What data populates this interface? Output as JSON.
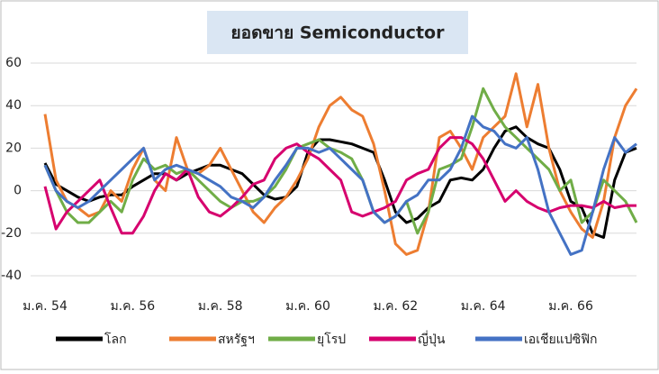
{
  "chart_data": {
    "type": "line",
    "title": "ยอดขาย Semiconductor",
    "categories": [
      "ม.ค. 54",
      null,
      null,
      null,
      null,
      null,
      null,
      null,
      "ม.ค. 56",
      null,
      null,
      null,
      null,
      null,
      null,
      null,
      "ม.ค. 58",
      null,
      null,
      null,
      null,
      null,
      null,
      null,
      "ม.ค. 60",
      null,
      null,
      null,
      null,
      null,
      null,
      null,
      "ม.ค. 62",
      null,
      null,
      null,
      null,
      null,
      null,
      null,
      "ม.ค. 64",
      null,
      null,
      null,
      null,
      null,
      null,
      null,
      "ม.ค. 66",
      null,
      null,
      null,
      null,
      null,
      null
    ],
    "series": [
      {
        "name": "โลก",
        "color": "#000000",
        "values": [
          13,
          3,
          0,
          -3,
          -5,
          -3,
          -2,
          -2,
          2,
          5,
          8,
          8,
          5,
          8,
          10,
          12,
          12,
          10,
          8,
          3,
          -2,
          -4,
          -3,
          2,
          18,
          24,
          24,
          23,
          22,
          20,
          18,
          5,
          -10,
          -15,
          -13,
          -8,
          -5,
          5,
          6,
          5,
          10,
          20,
          28,
          30,
          25,
          22,
          20,
          10,
          -5,
          -8,
          -20,
          -22,
          5,
          18,
          20
        ]
      },
      {
        "name": "สหรัฐฯ",
        "color": "#ed7d31",
        "values": [
          36,
          5,
          -5,
          -8,
          -12,
          -10,
          0,
          -5,
          10,
          20,
          5,
          0,
          25,
          10,
          8,
          12,
          20,
          10,
          0,
          -10,
          -15,
          -8,
          -3,
          5,
          15,
          30,
          40,
          44,
          38,
          35,
          22,
          0,
          -25,
          -30,
          -28,
          -10,
          25,
          28,
          20,
          10,
          25,
          30,
          35,
          55,
          30,
          50,
          20,
          0,
          -10,
          -18,
          -22,
          -5,
          25,
          40,
          48
        ]
      },
      {
        "name": "ยุโรป",
        "color": "#70ad47",
        "values": [
          12,
          0,
          -10,
          -15,
          -15,
          -10,
          -5,
          -10,
          5,
          15,
          10,
          12,
          8,
          10,
          5,
          0,
          -5,
          -8,
          -5,
          -5,
          -3,
          2,
          10,
          20,
          22,
          24,
          20,
          18,
          15,
          5,
          -10,
          -15,
          -12,
          -5,
          -20,
          -10,
          10,
          12,
          15,
          30,
          48,
          38,
          30,
          25,
          20,
          15,
          10,
          0,
          5,
          -15,
          -10,
          5,
          0,
          -5,
          -15
        ]
      },
      {
        "name": "ญี่ปุ่น",
        "color": "#d6006e",
        "values": [
          2,
          -18,
          -10,
          -5,
          0,
          5,
          -8,
          -20,
          -20,
          -12,
          0,
          8,
          5,
          10,
          -3,
          -10,
          -12,
          -8,
          -3,
          3,
          5,
          15,
          20,
          22,
          18,
          15,
          10,
          5,
          -10,
          -12,
          -10,
          -8,
          -5,
          5,
          8,
          10,
          20,
          25,
          25,
          22,
          15,
          5,
          -5,
          0,
          -5,
          -8,
          -10,
          -8,
          -7,
          -7,
          -8,
          -5,
          -8,
          -7,
          -7
        ]
      },
      {
        "name": "เอเชียแปซิฟิก",
        "color": "#4472c4",
        "values": [
          12,
          0,
          -5,
          -8,
          -5,
          0,
          5,
          10,
          15,
          20,
          5,
          10,
          12,
          10,
          8,
          5,
          2,
          -3,
          -5,
          -8,
          -3,
          5,
          12,
          20,
          20,
          18,
          20,
          15,
          10,
          5,
          -10,
          -15,
          -12,
          -5,
          -2,
          5,
          5,
          10,
          20,
          35,
          30,
          28,
          22,
          20,
          25,
          10,
          -10,
          -20,
          -30,
          -28,
          -10,
          10,
          25,
          18,
          22
        ]
      }
    ],
    "ylim": [
      -40,
      60
    ],
    "yticks": [
      -40,
      -20,
      0,
      20,
      40,
      60
    ],
    "grid": true
  }
}
